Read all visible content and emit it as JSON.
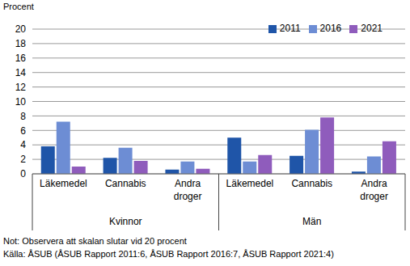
{
  "chart_data": {
    "type": "bar",
    "y_label": "Procent",
    "categories": [
      "Läkemedel",
      "Cannabis",
      "Andra droger",
      "Läkemedel",
      "Cannabis",
      "Andra droger"
    ],
    "groups": [
      "Kvinnor",
      "Kvinnor",
      "Kvinnor",
      "Män",
      "Män",
      "Män"
    ],
    "series": [
      {
        "name": "2011",
        "color": "#1f55a8",
        "values": [
          3.8,
          2.2,
          0.6,
          5.0,
          2.5,
          0.3
        ]
      },
      {
        "name": "2016",
        "color": "#6d8dd4",
        "values": [
          7.2,
          3.6,
          1.7,
          1.7,
          6.1,
          2.4
        ]
      },
      {
        "name": "2021",
        "color": "#8f5cbc",
        "values": [
          1.0,
          1.8,
          0.7,
          2.6,
          7.8,
          4.5
        ]
      }
    ],
    "ylim": [
      0,
      20
    ],
    "yticks": [
      0,
      2,
      4,
      6,
      8,
      10,
      12,
      14,
      16,
      18,
      20
    ],
    "grid": true,
    "legend": "top-right",
    "note": "Not: Observera att skalan slutar vid 20 procent",
    "source": "Källa: ÅSUB (ÅSUB Rapport 2011:6, ÅSUB Rapport 2016:7, ÅSUB Rapport 2021:4)"
  }
}
